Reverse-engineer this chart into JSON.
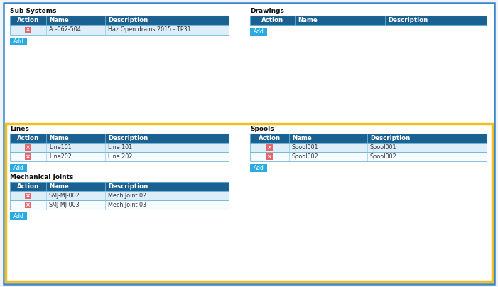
{
  "bg_color": "#f0f4f8",
  "outer_bg": "#ffffff",
  "outer_border_color": "#3a86c8",
  "highlight_border_color": "#f0c020",
  "header_color": "#1a6090",
  "header_text_color": "#ffffff",
  "row_color_even": "#ddeef8",
  "row_color_odd": "#f5fbff",
  "table_border_color": "#5aaad0",
  "button_color": "#29abe2",
  "x_btn_color": "#e8636a",
  "section_title_color": "#111111",
  "section_title_fontsize": 6.5,
  "cell_text_color": "#333333",
  "cell_fontsize": 5.8,
  "header_fontsize": 6.2,
  "subsystems_title": "Sub Systems",
  "subsystems_headers": [
    "Action",
    "Name",
    "Description"
  ],
  "subsystems_rows": [
    [
      "x",
      "AL-062-504",
      "Haz Open drains 2015 - TP31"
    ]
  ],
  "drawings_title": "Drawings",
  "drawings_headers": [
    "Action",
    "Name",
    "Description"
  ],
  "drawings_rows": [],
  "lines_title": "Lines",
  "lines_headers": [
    "Action",
    "Name",
    "Description"
  ],
  "lines_rows": [
    [
      "x",
      "Line101",
      "Line 101"
    ],
    [
      "x",
      "Line202",
      "Line 202"
    ]
  ],
  "spools_title": "Spools",
  "spools_headers": [
    "Action",
    "Name",
    "Description"
  ],
  "spools_rows": [
    [
      "x",
      "Spool001",
      "Spool001"
    ],
    [
      "x",
      "Spool002",
      "Spool002"
    ]
  ],
  "mj_title": "Mechanical Joints",
  "mj_headers": [
    "Action",
    "Name",
    "Description"
  ],
  "mj_rows": [
    [
      "x",
      "SMJ-MJ-002",
      "Mech Joint 02"
    ],
    [
      "x",
      "SMJ-MJ-003",
      "Mech Joint 03"
    ]
  ]
}
